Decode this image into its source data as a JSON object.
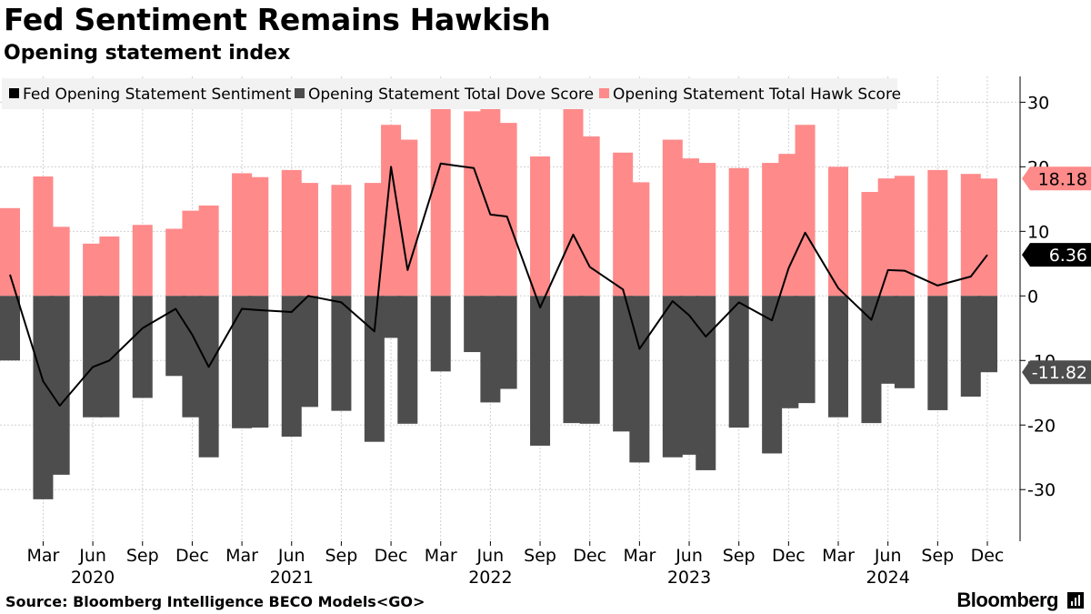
{
  "title": "Fed Sentiment Remains Hawkish",
  "subtitle": "Opening statement index",
  "source": "Source: Bloomberg Intelligence BECO Models<GO>",
  "brand": "Bloomberg",
  "colors": {
    "hawk": "#ff8a8a",
    "dove": "#4d4d4d",
    "sentiment": "#000000",
    "legend_bg": "#f2f2f2",
    "grid": "#d0d0d0"
  },
  "chart_data": {
    "type": "bar",
    "x": [
      "2020-01",
      "2020-02",
      "2020-03",
      "2020-04",
      "2020-05",
      "2020-06",
      "2020-07",
      "2020-08",
      "2020-09",
      "2020-10",
      "2020-11",
      "2020-12",
      "2021-01",
      "2021-02",
      "2021-03",
      "2021-04",
      "2021-05",
      "2021-06",
      "2021-07",
      "2021-08",
      "2021-09",
      "2021-10",
      "2021-11",
      "2021-12",
      "2022-01",
      "2022-02",
      "2022-03",
      "2022-04",
      "2022-05",
      "2022-06",
      "2022-07",
      "2022-08",
      "2022-09",
      "2022-10",
      "2022-11",
      "2022-12",
      "2023-01",
      "2023-02",
      "2023-03",
      "2023-04",
      "2023-05",
      "2023-06",
      "2023-07",
      "2023-08",
      "2023-09",
      "2023-10",
      "2023-11",
      "2023-12",
      "2024-01",
      "2024-02",
      "2024-03",
      "2024-04",
      "2024-05",
      "2024-06",
      "2024-07",
      "2024-08",
      "2024-09",
      "2024-10",
      "2024-11",
      "2024-12"
    ],
    "series": [
      {
        "name": "Fed Opening Statement Sentiment",
        "kind": "line",
        "x": [
          "2020-01",
          "2020-03",
          "2020-04",
          "2020-06",
          "2020-07",
          "2020-09",
          "2020-11",
          "2020-12",
          "2021-01",
          "2021-03",
          "2021-04",
          "2021-06",
          "2021-07",
          "2021-09",
          "2021-11",
          "2021-12",
          "2022-01",
          "2022-03",
          "2022-05",
          "2022-06",
          "2022-07",
          "2022-09",
          "2022-11",
          "2022-12",
          "2023-02",
          "2023-03",
          "2023-05",
          "2023-06",
          "2023-07",
          "2023-09",
          "2023-11",
          "2023-12",
          "2024-01",
          "2024-03",
          "2024-05",
          "2024-06",
          "2024-07",
          "2024-09",
          "2024-11",
          "2024-12"
        ],
        "values": [
          3.3,
          -13.2,
          -17,
          -11,
          -10,
          -5,
          -2,
          -6,
          -11,
          -2,
          -2.2,
          -2.5,
          0,
          -1,
          -5.5,
          20,
          4,
          20.5,
          19.8,
          12.6,
          12.3,
          -1.8,
          9.5,
          4.5,
          1,
          -8.2,
          -0.8,
          -3,
          -6.3,
          -1,
          -3.8,
          4.3,
          9.8,
          1.2,
          -3.7,
          4,
          3.9,
          1.6,
          3,
          6.36
        ]
      },
      {
        "name": "Opening Statement Total Dove Score",
        "kind": "bar",
        "x": [
          "2020-01",
          "2020-03",
          "2020-04",
          "2020-06",
          "2020-07",
          "2020-09",
          "2020-11",
          "2020-12",
          "2021-01",
          "2021-03",
          "2021-04",
          "2021-06",
          "2021-07",
          "2021-09",
          "2021-11",
          "2021-12",
          "2022-01",
          "2022-03",
          "2022-05",
          "2022-06",
          "2022-07",
          "2022-09",
          "2022-11",
          "2022-12",
          "2023-02",
          "2023-03",
          "2023-05",
          "2023-06",
          "2023-07",
          "2023-09",
          "2023-11",
          "2023-12",
          "2024-01",
          "2024-03",
          "2024-05",
          "2024-06",
          "2024-07",
          "2024-09",
          "2024-11",
          "2024-12"
        ],
        "values": [
          -10,
          -31.5,
          -27.7,
          -18.8,
          -18.8,
          -15.8,
          -12.4,
          -18.8,
          -25,
          -20.5,
          -20.4,
          -21.8,
          -17.2,
          -17.8,
          -22.6,
          -6.5,
          -19.8,
          -11.7,
          -8.7,
          -16.5,
          -14.4,
          -23.2,
          -19.7,
          -19.8,
          -21,
          -25.8,
          -25,
          -24.6,
          -27,
          -20.4,
          -24.4,
          -17.4,
          -16.6,
          -18.8,
          -19.7,
          -13.6,
          -14.3,
          -17.7,
          -15.6,
          -11.82
        ]
      },
      {
        "name": "Opening Statement Total Hawk Score",
        "kind": "bar",
        "x": [
          "2020-01",
          "2020-03",
          "2020-04",
          "2020-06",
          "2020-07",
          "2020-09",
          "2020-11",
          "2020-12",
          "2021-01",
          "2021-03",
          "2021-04",
          "2021-06",
          "2021-07",
          "2021-09",
          "2021-11",
          "2021-12",
          "2022-01",
          "2022-03",
          "2022-05",
          "2022-06",
          "2022-07",
          "2022-09",
          "2022-11",
          "2022-12",
          "2023-02",
          "2023-03",
          "2023-05",
          "2023-06",
          "2023-07",
          "2023-09",
          "2023-11",
          "2023-12",
          "2024-01",
          "2024-03",
          "2024-05",
          "2024-06",
          "2024-07",
          "2024-09",
          "2024-11",
          "2024-12"
        ],
        "values": [
          13.6,
          18.5,
          10.7,
          8.1,
          9.2,
          11,
          10.4,
          13.2,
          14,
          19,
          18.4,
          19.5,
          17.5,
          17.2,
          17.5,
          26.5,
          24.2,
          32.5,
          28.6,
          29.4,
          26.8,
          21.6,
          29.2,
          24.7,
          22.2,
          17.6,
          24.2,
          21.3,
          20.6,
          19.8,
          20.6,
          22,
          26.5,
          20,
          16.1,
          18.2,
          18.6,
          19.5,
          18.9,
          18.18
        ]
      }
    ],
    "x_ticks": [
      "Mar",
      "Jun",
      "Sep",
      "Dec",
      "Mar",
      "Jun",
      "Sep",
      "Dec",
      "Mar",
      "Jun",
      "Sep",
      "Dec",
      "Mar",
      "Jun",
      "Sep",
      "Dec",
      "Mar",
      "Jun",
      "Sep",
      "Dec"
    ],
    "x_tick_months": [
      "2020-03",
      "2020-06",
      "2020-09",
      "2020-12",
      "2021-03",
      "2021-06",
      "2021-09",
      "2021-12",
      "2022-03",
      "2022-06",
      "2022-09",
      "2022-12",
      "2023-03",
      "2023-06",
      "2023-09",
      "2023-12",
      "2024-03",
      "2024-06",
      "2024-09",
      "2024-12"
    ],
    "x_year_labels": [
      "2020",
      "2021",
      "2022",
      "2023",
      "2024"
    ],
    "x_year_label_months": [
      "2020-06",
      "2021-06",
      "2022-06",
      "2023-06",
      "2024-06"
    ],
    "y_ticks": [
      30,
      20,
      10,
      0,
      -10,
      -20,
      -30
    ],
    "ylim": [
      -38,
      34
    ],
    "y_axis_side": "right",
    "grid": true,
    "legend_position": "top-left",
    "last_value_labels": [
      {
        "series": "Opening Statement Total Hawk Score",
        "text": "18.18",
        "value": 18.18
      },
      {
        "series": "Fed Opening Statement Sentiment",
        "text": "6.36",
        "value": 6.36
      },
      {
        "series": "Opening Statement Total Dove Score",
        "text": "-11.82",
        "value": -11.82
      }
    ]
  }
}
